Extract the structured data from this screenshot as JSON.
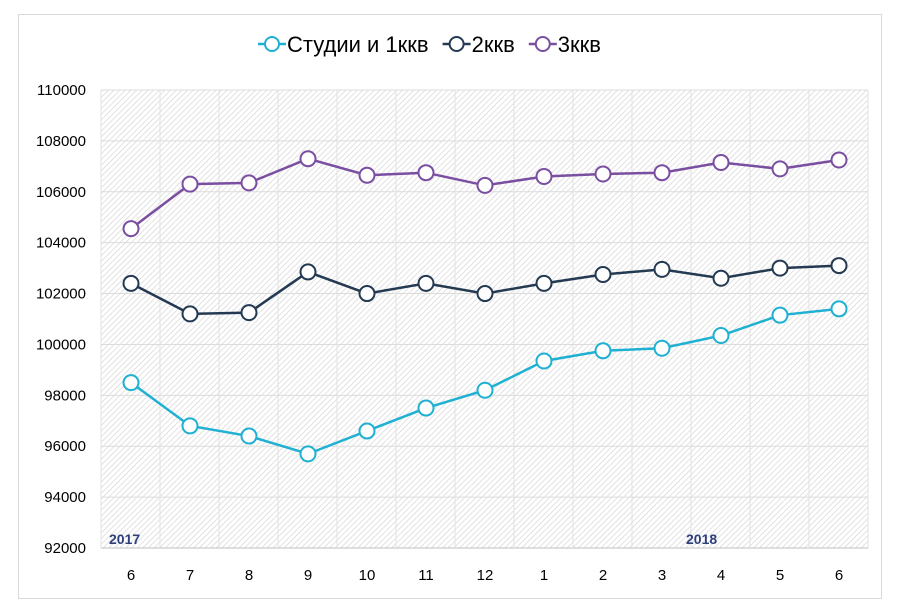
{
  "chart_data": {
    "type": "line",
    "title": "",
    "xlabel": "",
    "ylabel": "",
    "categories": [
      "6",
      "7",
      "8",
      "9",
      "10",
      "11",
      "12",
      "1",
      "2",
      "3",
      "4",
      "5",
      "6"
    ],
    "year_labels": [
      {
        "label": "2017",
        "at_index": 0
      },
      {
        "label": "2018",
        "at_index": 10
      }
    ],
    "ylim": [
      92000,
      110000
    ],
    "yticks": [
      92000,
      94000,
      96000,
      98000,
      100000,
      102000,
      104000,
      106000,
      108000,
      110000
    ],
    "grid": true,
    "legend_position": "top",
    "series": [
      {
        "name": "Студии и 1ккв",
        "color": "#1fb0d2",
        "values": [
          98500,
          96800,
          96400,
          95700,
          96600,
          97500,
          98200,
          99350,
          99750,
          99850,
          100350,
          101150,
          101400
        ]
      },
      {
        "name": "2ккв",
        "color": "#243a52",
        "values": [
          102400,
          101200,
          101250,
          102850,
          102000,
          102400,
          102000,
          102400,
          102750,
          102950,
          102600,
          103000,
          103100
        ]
      },
      {
        "name": "3ккв",
        "color": "#7a4ea0",
        "values": [
          104550,
          106300,
          106350,
          107300,
          106650,
          106750,
          106250,
          106600,
          106700,
          106750,
          107150,
          106900,
          107250
        ]
      }
    ]
  }
}
